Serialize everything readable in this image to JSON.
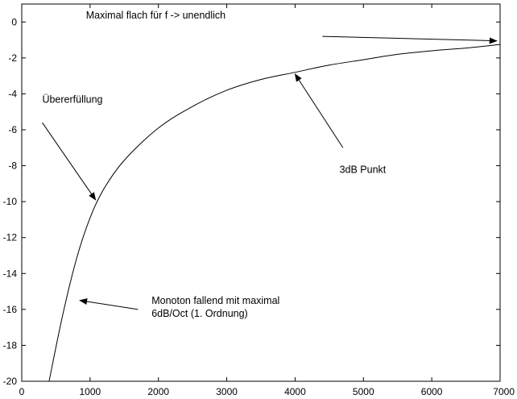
{
  "chart_data": {
    "type": "line",
    "title": "",
    "xlabel": "",
    "ylabel": "",
    "xlim": [
      0,
      7000
    ],
    "ylim": [
      -20,
      1
    ],
    "xticks": [
      0,
      1000,
      2000,
      3000,
      4000,
      5000,
      6000,
      7000
    ],
    "yticks": [
      0,
      -2,
      -4,
      -6,
      -8,
      -10,
      -12,
      -14,
      -16,
      -18,
      -20
    ],
    "grid": false,
    "legend": "none",
    "series": [
      {
        "color": "#000000",
        "x": [
          400,
          600,
          800,
          1000,
          1200,
          1500,
          2000,
          2500,
          3000,
          3500,
          4000,
          4500,
          5000,
          5500,
          6000,
          6500,
          7000
        ],
        "y": [
          -20.0,
          -16.3,
          -13.2,
          -10.9,
          -9.3,
          -7.7,
          -5.9,
          -4.7,
          -3.8,
          -3.2,
          -2.8,
          -2.4,
          -2.1,
          -1.8,
          -1.6,
          -1.45,
          -1.25
        ]
      }
    ],
    "annotations": [
      {
        "text_lines": [
          "Maximal flach für f -> unendlich"
        ],
        "text_x": 940,
        "text_y": 0.2,
        "arrow_from": [
          4400,
          -0.8
        ],
        "arrow_to": [
          6950,
          -1.05
        ]
      },
      {
        "text_lines": [
          "Übererfüllung"
        ],
        "text_x": 300,
        "text_y": -4.5,
        "arrow_from": [
          300,
          -5.6
        ],
        "arrow_to": [
          1080,
          -9.9
        ]
      },
      {
        "text_lines": [
          "3dB Punkt"
        ],
        "text_x": 4650,
        "text_y": -8.4,
        "arrow_from": [
          4700,
          -7.0
        ],
        "arrow_to": [
          4000,
          -2.9
        ]
      },
      {
        "text_lines": [
          "Monoton fallend mit maximal",
          "6dB/Oct (1. Ordnung)"
        ],
        "text_x": 1900,
        "text_y": -15.7,
        "arrow_from": [
          1700,
          -16.0
        ],
        "arrow_to": [
          850,
          -15.5
        ]
      }
    ]
  }
}
